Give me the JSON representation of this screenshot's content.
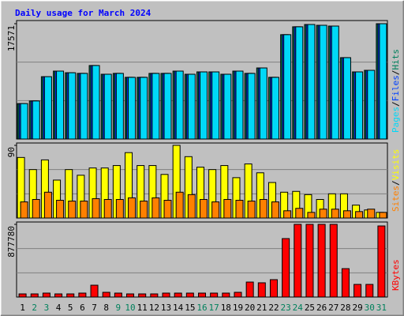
{
  "title": "Daily usage for March 2024",
  "legend_separator": "/",
  "chart_data": [
    {
      "type": "bar",
      "ylim": [
        0,
        17571
      ],
      "yticks": [
        17571
      ],
      "series": [
        {
          "name": "Hits",
          "color": "#00805c",
          "values": [
            5400,
            5800,
            9500,
            10350,
            10100,
            10000,
            11200,
            9870,
            10000,
            9400,
            9400,
            10000,
            10000,
            10350,
            9870,
            10230,
            10230,
            9870,
            10350,
            10000,
            10830,
            9400,
            15900,
            17100,
            17450,
            17330,
            17210,
            12400,
            10230,
            10470,
            17571
          ]
        },
        {
          "name": "Files",
          "color": "#0040ff",
          "values": [
            5400,
            5800,
            9500,
            10350,
            10100,
            10000,
            11200,
            9870,
            10000,
            9400,
            9400,
            10000,
            10000,
            10350,
            9870,
            10230,
            10230,
            9870,
            10350,
            10000,
            10830,
            9400,
            15900,
            17100,
            17450,
            17330,
            17210,
            12400,
            10230,
            10470,
            17571
          ]
        },
        {
          "name": "Pages",
          "color": "#00d8f8",
          "values": [
            5400,
            5800,
            9500,
            10350,
            10100,
            10000,
            11200,
            9870,
            10000,
            9400,
            9400,
            10000,
            10000,
            10350,
            9870,
            10230,
            10230,
            9870,
            10350,
            10000,
            10830,
            9400,
            15900,
            17100,
            17450,
            17330,
            17210,
            12400,
            10230,
            10470,
            17571
          ]
        }
      ]
    },
    {
      "type": "bar",
      "ylim": [
        0,
        90
      ],
      "yticks": [
        90
      ],
      "series": [
        {
          "name": "Visits",
          "color": "#ffff00",
          "values": [
            75,
            60,
            72,
            47,
            60,
            53,
            62,
            62,
            65,
            81,
            65,
            65,
            54,
            90,
            76,
            63,
            60,
            65,
            50,
            67,
            56,
            44,
            32,
            33,
            29,
            23,
            30,
            30,
            16,
            10,
            7
          ]
        },
        {
          "name": "Sites",
          "color": "#ff8000",
          "values": [
            20,
            23,
            32,
            22,
            21,
            21,
            24,
            23,
            23,
            25,
            21,
            25,
            22,
            32,
            29,
            23,
            20,
            23,
            22,
            21,
            23,
            20,
            9,
            12,
            7,
            11,
            11,
            9,
            8,
            11,
            7
          ]
        }
      ]
    },
    {
      "type": "bar",
      "ylim": [
        0,
        877780
      ],
      "yticks": [
        877780
      ],
      "categories": [
        "1",
        "2",
        "3",
        "4",
        "5",
        "6",
        "7",
        "8",
        "9",
        "10",
        "11",
        "12",
        "13",
        "14",
        "15",
        "16",
        "17",
        "18",
        "19",
        "20",
        "21",
        "22",
        "23",
        "24",
        "25",
        "26",
        "27",
        "28",
        "29",
        "30",
        "31"
      ],
      "highlight": {
        "color": "#00805c",
        "indices": [
          1,
          2,
          8,
          9,
          15,
          16,
          22,
          23,
          29,
          30
        ]
      },
      "series": [
        {
          "name": "KBytes",
          "color": "#ff0000",
          "values": [
            38000,
            38000,
            47700,
            38000,
            38000,
            47700,
            143000,
            57200,
            47700,
            38000,
            38000,
            38000,
            47700,
            47700,
            47700,
            47700,
            47700,
            47700,
            57200,
            181000,
            172000,
            210000,
            706000,
            877780,
            877780,
            877780,
            877780,
            343000,
            152600,
            152600,
            858700
          ]
        }
      ]
    }
  ]
}
